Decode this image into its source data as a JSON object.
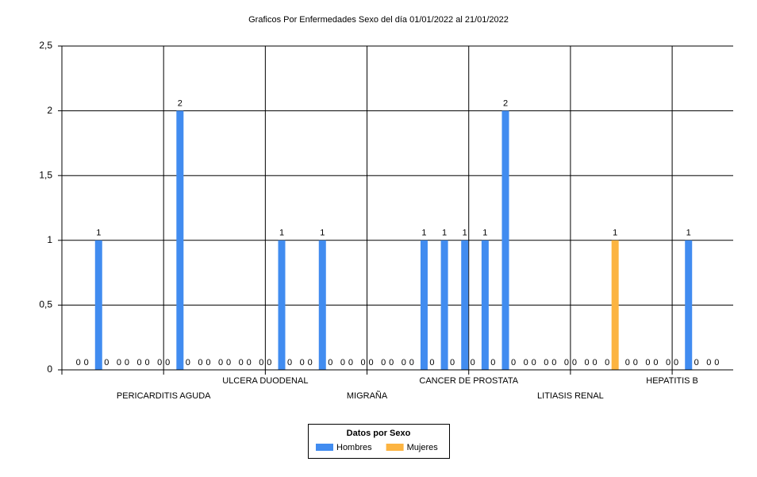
{
  "chart_data": {
    "type": "bar",
    "title": "Graficos Por Enfermedades Sexo del día 01/01/2022 al 21/01/2022",
    "legend_title": "Datos por Sexo",
    "categories": [
      null,
      null,
      null,
      null,
      "PERICARDITIS AGUDA",
      null,
      null,
      null,
      null,
      "ULCERA DUODENAL",
      null,
      null,
      null,
      null,
      "MIGRAÑA",
      null,
      null,
      null,
      null,
      "CANCER DE PROSTATA",
      null,
      null,
      null,
      null,
      "LITIASIS RENAL",
      null,
      null,
      null,
      null,
      "HEPATITIS B",
      null,
      null
    ],
    "series": [
      {
        "name": "Hombres",
        "color": "#418cf0",
        "values": [
          0,
          1,
          0,
          0,
          0,
          2,
          0,
          0,
          0,
          0,
          1,
          0,
          1,
          0,
          0,
          0,
          0,
          1,
          1,
          1,
          1,
          2,
          0,
          0,
          0,
          0,
          0,
          0,
          0,
          0,
          1,
          0
        ]
      },
      {
        "name": "Mujeres",
        "color": "#fcb441",
        "values": [
          0,
          0,
          0,
          0,
          0,
          0,
          0,
          0,
          0,
          0,
          0,
          0,
          0,
          0,
          0,
          0,
          0,
          0,
          0,
          0,
          0,
          0,
          0,
          0,
          0,
          0,
          1,
          0,
          0,
          0,
          0,
          0
        ]
      }
    ],
    "ylim": [
      0,
      2.5
    ],
    "yticks": [
      0,
      {
        "value": 0.5,
        "label": "0,5"
      },
      1,
      {
        "value": 1.5,
        "label": "1,5"
      },
      2,
      {
        "value": 2.5,
        "label": "2,5"
      }
    ],
    "grid": true,
    "legend_position": "bottom"
  }
}
